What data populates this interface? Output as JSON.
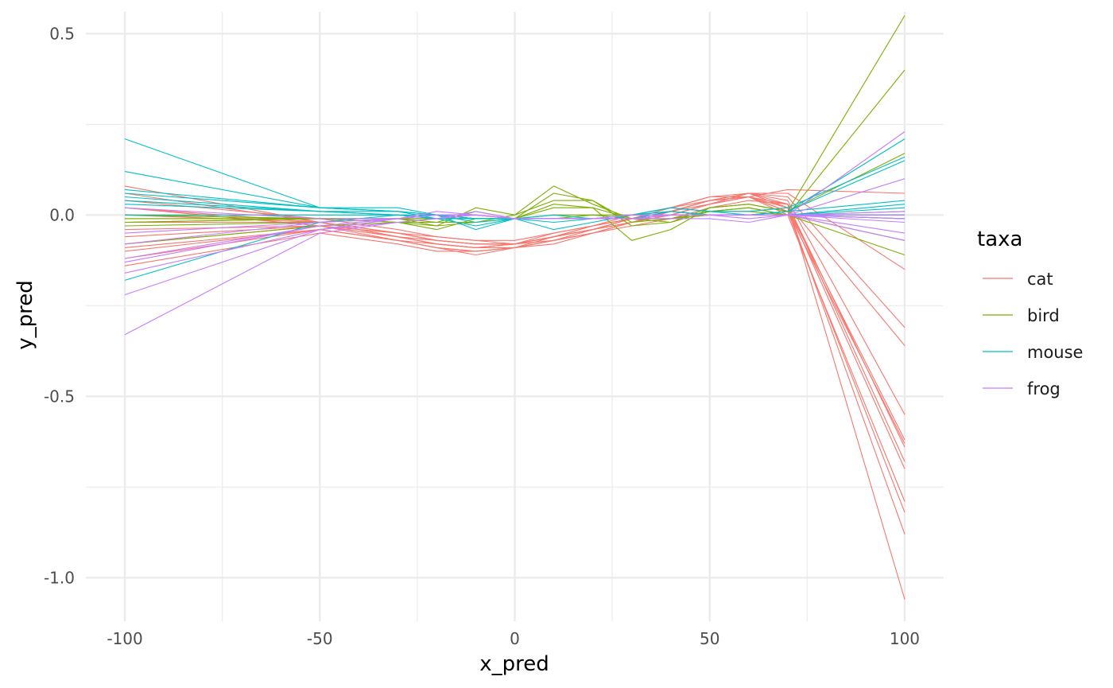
{
  "chart_data": {
    "type": "line",
    "xlabel": "x_pred",
    "ylabel": "y_pred",
    "xlim": [
      -110,
      110
    ],
    "ylim": [
      -1.12,
      0.56
    ],
    "x_ticks": [
      -100,
      -50,
      0,
      50,
      100
    ],
    "x_tick_labels": [
      "-100",
      "-50",
      "0",
      "50",
      "100"
    ],
    "y_ticks": [
      0.5,
      0.0,
      -0.5,
      -1.0
    ],
    "y_tick_labels": [
      "0.5",
      "0.0",
      "-0.5",
      "-1.0"
    ],
    "x_minor_ticks": [
      -75,
      -25,
      25,
      75
    ],
    "y_minor_ticks": [
      0.25,
      -0.25,
      -0.75
    ],
    "grid": true,
    "legend": {
      "title": "taxa",
      "position": "right",
      "items": [
        {
          "label": "cat",
          "color": "#F8766D"
        },
        {
          "label": "bird",
          "color": "#7CAE00"
        },
        {
          "label": "mouse",
          "color": "#00BFC4"
        },
        {
          "label": "frog",
          "color": "#C77CFF"
        }
      ]
    },
    "x": [
      -100,
      -50,
      -30,
      -20,
      -10,
      0,
      10,
      20,
      30,
      40,
      50,
      60,
      70,
      100
    ],
    "series": [
      {
        "taxon": "cat",
        "color": "#F8766D",
        "values": [
          -0.12,
          -0.04,
          -0.07,
          -0.09,
          -0.1,
          -0.09,
          -0.07,
          -0.05,
          -0.03,
          -0.01,
          0.02,
          0.04,
          0.03,
          -1.06
        ]
      },
      {
        "taxon": "cat",
        "color": "#F8766D",
        "values": [
          -0.1,
          -0.04,
          -0.07,
          -0.09,
          -0.11,
          -0.09,
          -0.08,
          -0.05,
          -0.02,
          0.0,
          0.03,
          0.06,
          0.02,
          -0.88
        ]
      },
      {
        "taxon": "cat",
        "color": "#F8766D",
        "values": [
          -0.08,
          -0.03,
          -0.06,
          -0.08,
          -0.09,
          -0.09,
          -0.06,
          -0.04,
          -0.02,
          0.01,
          0.04,
          0.05,
          0.01,
          -0.82
        ]
      },
      {
        "taxon": "cat",
        "color": "#F8766D",
        "values": [
          -0.06,
          -0.03,
          -0.06,
          -0.08,
          -0.09,
          -0.08,
          -0.06,
          -0.04,
          -0.01,
          0.01,
          0.04,
          0.05,
          0.0,
          -0.79
        ]
      },
      {
        "taxon": "cat",
        "color": "#F8766D",
        "values": [
          -0.14,
          -0.05,
          -0.08,
          -0.1,
          -0.1,
          -0.09,
          -0.07,
          -0.05,
          -0.02,
          0.0,
          0.03,
          0.05,
          0.02,
          -0.7
        ]
      },
      {
        "taxon": "cat",
        "color": "#F8766D",
        "values": [
          -0.04,
          -0.03,
          -0.07,
          -0.08,
          -0.09,
          -0.08,
          -0.07,
          -0.04,
          -0.02,
          0.01,
          0.03,
          0.06,
          0.03,
          -0.68
        ]
      },
      {
        "taxon": "cat",
        "color": "#F8766D",
        "values": [
          -0.02,
          -0.02,
          -0.06,
          -0.07,
          -0.08,
          -0.08,
          -0.06,
          -0.04,
          -0.02,
          0.0,
          0.03,
          0.05,
          0.01,
          -0.63
        ]
      },
      {
        "taxon": "cat",
        "color": "#F8766D",
        "values": [
          0.0,
          -0.02,
          -0.05,
          -0.07,
          -0.08,
          -0.08,
          -0.06,
          -0.03,
          -0.01,
          0.01,
          0.04,
          0.05,
          0.02,
          -0.62
        ]
      },
      {
        "taxon": "cat",
        "color": "#F8766D",
        "values": [
          0.02,
          -0.02,
          -0.05,
          -0.06,
          -0.07,
          -0.08,
          -0.05,
          -0.03,
          -0.01,
          0.02,
          0.04,
          0.06,
          0.04,
          -0.55
        ]
      },
      {
        "taxon": "cat",
        "color": "#F8766D",
        "values": [
          0.04,
          -0.01,
          -0.04,
          -0.06,
          -0.07,
          -0.07,
          -0.05,
          -0.03,
          0.0,
          0.02,
          0.05,
          0.05,
          0.03,
          -0.36
        ]
      },
      {
        "taxon": "cat",
        "color": "#F8766D",
        "values": [
          0.06,
          -0.02,
          -0.05,
          -0.07,
          -0.08,
          -0.08,
          -0.06,
          -0.04,
          -0.01,
          0.01,
          0.04,
          0.06,
          0.05,
          -0.31
        ]
      },
      {
        "taxon": "cat",
        "color": "#F8766D",
        "values": [
          0.08,
          -0.02,
          -0.06,
          -0.08,
          -0.09,
          -0.08,
          -0.06,
          -0.03,
          -0.01,
          0.02,
          0.05,
          0.06,
          0.06,
          -0.15
        ]
      },
      {
        "taxon": "cat",
        "color": "#F8766D",
        "values": [
          0.02,
          -0.03,
          -0.05,
          -0.07,
          -0.08,
          -0.08,
          -0.06,
          -0.04,
          -0.01,
          0.01,
          0.04,
          0.05,
          0.07,
          0.06
        ]
      },
      {
        "taxon": "cat",
        "color": "#F8766D",
        "values": [
          -0.09,
          -0.04,
          -0.07,
          -0.09,
          -0.1,
          -0.09,
          -0.07,
          -0.05,
          -0.02,
          0.0,
          0.03,
          0.05,
          0.03,
          -0.64
        ]
      },
      {
        "taxon": "bird",
        "color": "#7CAE00",
        "values": [
          -0.02,
          -0.01,
          -0.02,
          -0.03,
          0.02,
          0.0,
          0.08,
          0.03,
          -0.01,
          -0.02,
          0.02,
          0.03,
          0.01,
          0.55
        ]
      },
      {
        "taxon": "bird",
        "color": "#7CAE00",
        "values": [
          -0.01,
          -0.01,
          -0.02,
          -0.02,
          0.01,
          -0.01,
          0.06,
          0.04,
          -0.02,
          -0.01,
          0.01,
          0.02,
          0.0,
          0.4
        ]
      },
      {
        "taxon": "bird",
        "color": "#7CAE00",
        "values": [
          -0.08,
          -0.03,
          -0.02,
          -0.04,
          -0.01,
          -0.01,
          0.03,
          0.02,
          -0.07,
          -0.04,
          0.02,
          0.03,
          0.01,
          0.17
        ]
      },
      {
        "taxon": "bird",
        "color": "#7CAE00",
        "values": [
          -0.03,
          -0.02,
          -0.01,
          -0.03,
          -0.02,
          0.0,
          0.04,
          0.04,
          -0.03,
          -0.02,
          0.01,
          0.02,
          0.0,
          -0.11
        ]
      },
      {
        "taxon": "bird",
        "color": "#7CAE00",
        "values": [
          0.0,
          -0.01,
          -0.01,
          -0.02,
          -0.02,
          -0.01,
          0.02,
          0.02,
          -0.01,
          -0.01,
          0.01,
          0.01,
          0.0,
          -0.07
        ]
      },
      {
        "taxon": "bird",
        "color": "#7CAE00",
        "values": [
          -0.01,
          -0.01,
          -0.01,
          -0.01,
          -0.01,
          -0.01,
          0.0,
          0.0,
          -0.01,
          -0.01,
          0.0,
          0.0,
          0.0,
          0.0
        ]
      },
      {
        "taxon": "bird",
        "color": "#7CAE00",
        "values": [
          0.0,
          -0.01,
          -0.01,
          -0.01,
          -0.01,
          -0.01,
          -0.01,
          -0.01,
          -0.01,
          -0.01,
          0.0,
          0.0,
          0.0,
          0.01
        ]
      },
      {
        "taxon": "bird",
        "color": "#7CAE00",
        "values": [
          -0.02,
          -0.01,
          -0.01,
          -0.01,
          -0.01,
          -0.01,
          -0.01,
          0.0,
          0.0,
          0.0,
          0.0,
          0.0,
          0.0,
          -0.01
        ]
      },
      {
        "taxon": "mouse",
        "color": "#00BFC4",
        "values": [
          0.21,
          0.02,
          0.01,
          0.0,
          -0.02,
          -0.01,
          0.0,
          -0.01,
          -0.01,
          0.01,
          0.0,
          0.0,
          0.01,
          0.21
        ]
      },
      {
        "taxon": "mouse",
        "color": "#00BFC4",
        "values": [
          0.12,
          0.02,
          0.02,
          0.0,
          -0.04,
          -0.01,
          -0.04,
          -0.02,
          0.0,
          0.02,
          0.01,
          0.01,
          0.02,
          0.16
        ]
      },
      {
        "taxon": "mouse",
        "color": "#00BFC4",
        "values": [
          0.07,
          0.02,
          0.01,
          -0.01,
          -0.03,
          -0.01,
          -0.02,
          -0.01,
          0.0,
          0.02,
          0.01,
          0.0,
          0.01,
          0.15
        ]
      },
      {
        "taxon": "mouse",
        "color": "#00BFC4",
        "values": [
          0.06,
          0.02,
          0.01,
          0.0,
          -0.01,
          -0.01,
          -0.01,
          -0.01,
          0.0,
          0.01,
          0.0,
          0.0,
          0.01,
          0.04
        ]
      },
      {
        "taxon": "mouse",
        "color": "#00BFC4",
        "values": [
          0.05,
          0.01,
          0.01,
          0.0,
          -0.01,
          -0.01,
          -0.01,
          -0.01,
          0.0,
          0.01,
          0.0,
          0.0,
          0.0,
          0.02
        ]
      },
      {
        "taxon": "mouse",
        "color": "#00BFC4",
        "values": [
          0.04,
          0.01,
          0.0,
          0.0,
          -0.01,
          -0.01,
          -0.01,
          -0.01,
          0.0,
          0.0,
          0.0,
          0.0,
          0.0,
          0.0
        ]
      },
      {
        "taxon": "mouse",
        "color": "#00BFC4",
        "values": [
          0.03,
          0.01,
          0.0,
          -0.01,
          -0.01,
          -0.01,
          -0.01,
          -0.01,
          -0.01,
          0.0,
          0.0,
          0.0,
          0.0,
          -0.01
        ]
      },
      {
        "taxon": "mouse",
        "color": "#00BFC4",
        "values": [
          0.0,
          0.0,
          0.0,
          -0.01,
          -0.01,
          -0.01,
          -0.01,
          -0.01,
          -0.01,
          0.0,
          0.0,
          0.0,
          0.0,
          0.0
        ]
      },
      {
        "taxon": "mouse",
        "color": "#00BFC4",
        "values": [
          -0.18,
          -0.02,
          0.0,
          -0.01,
          -0.01,
          -0.01,
          -0.01,
          -0.01,
          -0.01,
          0.0,
          0.0,
          0.0,
          0.0,
          0.03
        ]
      },
      {
        "taxon": "frog",
        "color": "#C77CFF",
        "values": [
          -0.33,
          -0.05,
          -0.02,
          -0.01,
          0.0,
          -0.01,
          -0.01,
          -0.01,
          -0.01,
          0.0,
          0.0,
          0.0,
          0.0,
          0.23
        ]
      },
      {
        "taxon": "frog",
        "color": "#C77CFF",
        "values": [
          -0.22,
          -0.04,
          -0.01,
          0.0,
          0.0,
          -0.01,
          -0.01,
          -0.01,
          -0.01,
          0.0,
          0.0,
          0.0,
          0.0,
          0.1
        ]
      },
      {
        "taxon": "frog",
        "color": "#C77CFF",
        "values": [
          -0.16,
          -0.04,
          -0.02,
          -0.01,
          0.01,
          -0.01,
          -0.01,
          -0.01,
          -0.01,
          -0.01,
          -0.01,
          -0.02,
          0.0,
          -0.07
        ]
      },
      {
        "taxon": "frog",
        "color": "#C77CFF",
        "values": [
          -0.13,
          -0.03,
          -0.01,
          0.0,
          0.0,
          -0.01,
          -0.01,
          -0.01,
          -0.01,
          0.0,
          0.0,
          -0.01,
          0.0,
          -0.05
        ]
      },
      {
        "taxon": "frog",
        "color": "#C77CFF",
        "values": [
          -0.12,
          -0.03,
          -0.01,
          0.01,
          0.0,
          -0.01,
          -0.01,
          -0.01,
          -0.01,
          0.0,
          0.0,
          0.0,
          0.0,
          -0.02
        ]
      },
      {
        "taxon": "frog",
        "color": "#C77CFF",
        "values": [
          -0.08,
          -0.02,
          -0.01,
          0.0,
          0.0,
          -0.01,
          -0.01,
          -0.01,
          0.0,
          0.0,
          0.0,
          0.0,
          0.0,
          -0.01
        ]
      },
      {
        "taxon": "frog",
        "color": "#C77CFF",
        "values": [
          -0.05,
          -0.02,
          -0.01,
          0.0,
          0.0,
          -0.01,
          -0.01,
          -0.01,
          0.0,
          0.0,
          0.0,
          0.0,
          0.0,
          0.0
        ]
      },
      {
        "taxon": "frog",
        "color": "#C77CFF",
        "values": [
          0.02,
          -0.01,
          -0.01,
          0.0,
          0.0,
          -0.01,
          -0.01,
          -0.01,
          0.0,
          0.0,
          0.0,
          0.0,
          0.0,
          0.01
        ]
      }
    ]
  }
}
